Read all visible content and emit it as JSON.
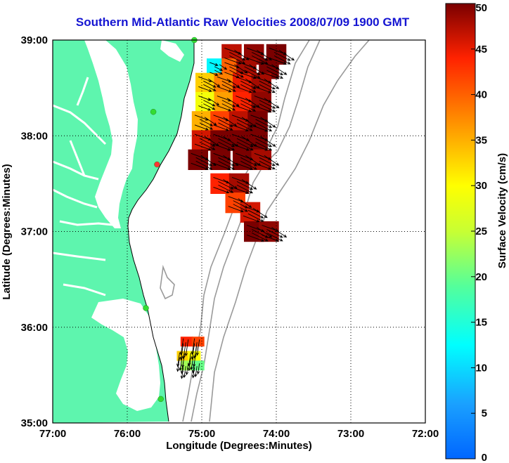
{
  "title": "Southern Mid-Atlantic Raw Velocities 2008/07/09 1900 GMT",
  "axes": {
    "xlabel": "Longitude (Degrees:Minutes)",
    "ylabel": "Latitude (Degrees:Minutes)",
    "xticks": [
      "77:00",
      "76:00",
      "75:00",
      "74:00",
      "73:00",
      "72:00"
    ],
    "yticks": [
      "39:00",
      "38:00",
      "37:00",
      "36:00",
      "35:00"
    ],
    "xlim": [
      -77,
      -72
    ],
    "ylim": [
      35,
      39
    ],
    "grid": true,
    "grid_style": "dotted"
  },
  "colorbar": {
    "label": "Surface Velocity (cm/s)",
    "ticks": [
      "50",
      "45",
      "40",
      "35",
      "30",
      "25",
      "20",
      "15",
      "10",
      "5",
      "0"
    ],
    "range": [
      0,
      50
    ],
    "colormap": "jet"
  },
  "colors": {
    "land": "#5ef5ae",
    "water": "#ffffff",
    "title": "#1414d2",
    "isobath": "#9a9a9a",
    "station": "#33dd33",
    "station_alt": "#ff3333",
    "vector": "#000000"
  },
  "chart_data": {
    "type": "heatmap",
    "description_units": "surface current speed cm/s on lon/lat grid",
    "regions": [
      {
        "name": "",
        "cells": [
          {
            "lon": -74.6,
            "lat": 38.85,
            "speed": 47
          },
          {
            "lon": -74.3,
            "lat": 38.85,
            "speed": 49
          },
          {
            "lon": -74.0,
            "lat": 38.85,
            "speed": 50
          },
          {
            "lon": -74.8,
            "lat": 38.7,
            "speed": 12
          },
          {
            "lon": -74.6,
            "lat": 38.7,
            "speed": 40
          },
          {
            "lon": -74.4,
            "lat": 38.7,
            "speed": 48
          },
          {
            "lon": -74.1,
            "lat": 38.7,
            "speed": 50
          },
          {
            "lon": -74.95,
            "lat": 38.55,
            "speed": 33
          },
          {
            "lon": -74.7,
            "lat": 38.55,
            "speed": 38
          },
          {
            "lon": -74.45,
            "lat": 38.55,
            "speed": 45
          },
          {
            "lon": -74.2,
            "lat": 38.55,
            "speed": 48
          },
          {
            "lon": -74.95,
            "lat": 38.35,
            "speed": 29
          },
          {
            "lon": -74.7,
            "lat": 38.35,
            "speed": 36
          },
          {
            "lon": -74.45,
            "lat": 38.35,
            "speed": 44
          },
          {
            "lon": -74.2,
            "lat": 38.35,
            "speed": 49
          },
          {
            "lon": -75.0,
            "lat": 38.15,
            "speed": 35
          },
          {
            "lon": -74.75,
            "lat": 38.15,
            "speed": 42
          },
          {
            "lon": -74.5,
            "lat": 38.15,
            "speed": 47
          },
          {
            "lon": -74.25,
            "lat": 38.15,
            "speed": 50
          },
          {
            "lon": -75.0,
            "lat": 37.95,
            "speed": 46
          },
          {
            "lon": -74.75,
            "lat": 37.95,
            "speed": 50
          },
          {
            "lon": -74.5,
            "lat": 37.95,
            "speed": 50
          },
          {
            "lon": -74.25,
            "lat": 37.95,
            "speed": 50
          },
          {
            "lon": -75.05,
            "lat": 37.75,
            "speed": 50
          },
          {
            "lon": -74.75,
            "lat": 37.75,
            "speed": 50
          },
          {
            "lon": -74.45,
            "lat": 37.75,
            "speed": 50
          },
          {
            "lon": -74.2,
            "lat": 37.75,
            "speed": 48
          },
          {
            "lon": -74.75,
            "lat": 37.5,
            "speed": 44
          },
          {
            "lon": -74.5,
            "lat": 37.5,
            "speed": 48
          },
          {
            "lon": -74.55,
            "lat": 37.3,
            "speed": 42
          },
          {
            "lon": -74.35,
            "lat": 37.2,
            "speed": 46
          },
          {
            "lon": -74.3,
            "lat": 37.0,
            "speed": 50
          },
          {
            "lon": -74.1,
            "lat": 37.0,
            "speed": 49
          }
        ]
      },
      {
        "name": "",
        "cells": [
          {
            "lon": -75.2,
            "lat": 35.85,
            "speed": 44
          },
          {
            "lon": -75.05,
            "lat": 35.85,
            "speed": 42
          },
          {
            "lon": -75.25,
            "lat": 35.7,
            "speed": 33
          },
          {
            "lon": -75.1,
            "lat": 35.7,
            "speed": 30
          },
          {
            "lon": -75.2,
            "lat": 35.6,
            "speed": 23
          },
          {
            "lon": -75.05,
            "lat": 35.6,
            "speed": 20
          }
        ]
      }
    ],
    "vectors_note": "",
    "stations": [
      {
        "lon": -75.1,
        "lat": 39.0
      },
      {
        "lon": -75.65,
        "lat": 38.25
      },
      {
        "lon": -75.6,
        "lat": 37.7
      },
      {
        "lon": -75.75,
        "lat": 36.2
      },
      {
        "lon": -75.55,
        "lat": 35.25
      }
    ]
  }
}
